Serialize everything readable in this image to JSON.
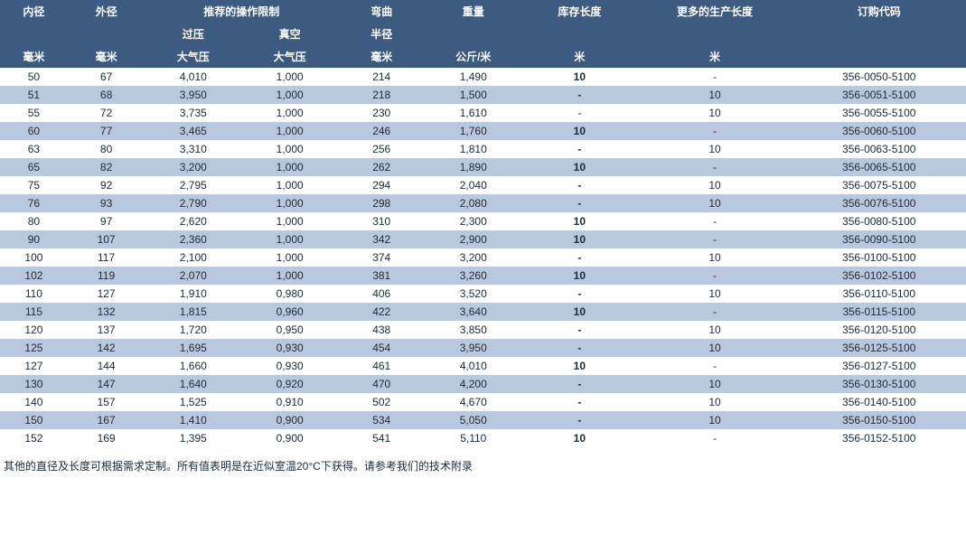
{
  "table": {
    "header": {
      "row1": {
        "inner": "内径",
        "outer": "外径",
        "oplimit": "推荐的操作限制",
        "bend": "弯曲",
        "weight": "重量",
        "stock": "库存长度",
        "prod": "更多的生产长度",
        "code": "订购代码"
      },
      "row2": {
        "press": "过压",
        "vacuum": "真空",
        "radius": "半径"
      },
      "row3": {
        "inner_u": "毫米",
        "outer_u": "毫米",
        "press_u": "大气压",
        "vacuum_u": "大气压",
        "bend_u": "毫米",
        "weight_u": "公斤/米",
        "stock_u": "米",
        "prod_u": "米"
      }
    },
    "colors": {
      "header_bg": "#3d5a80",
      "header_text": "#ffffff",
      "row_even_bg": "#ffffff",
      "row_odd_bg": "#b8c9df",
      "body_text": "#1a2b3c"
    },
    "rows": [
      {
        "id": "50",
        "od": "67",
        "press": "4,010",
        "vac": "1,000",
        "bend": "214",
        "wt": "1,490",
        "stock": "10",
        "stock_bold": true,
        "prod": "-",
        "code": "356-0050-5100"
      },
      {
        "id": "51",
        "od": "68",
        "press": "3,950",
        "vac": "1,000",
        "bend": "218",
        "wt": "1,500",
        "stock": "-",
        "stock_bold": true,
        "prod": "10",
        "code": "356-0051-5100"
      },
      {
        "id": "55",
        "od": "72",
        "press": "3,735",
        "vac": "1,000",
        "bend": "230",
        "wt": "1,610",
        "stock": "-",
        "stock_bold": false,
        "prod": "10",
        "code": "356-0055-5100"
      },
      {
        "id": "60",
        "od": "77",
        "press": "3,465",
        "vac": "1,000",
        "bend": "246",
        "wt": "1,760",
        "stock": "10",
        "stock_bold": true,
        "prod": "-",
        "code": "356-0060-5100"
      },
      {
        "id": "63",
        "od": "80",
        "press": "3,310",
        "vac": "1,000",
        "bend": "256",
        "wt": "1,810",
        "stock": "-",
        "stock_bold": true,
        "prod": "10",
        "code": "356-0063-5100"
      },
      {
        "id": "65",
        "od": "82",
        "press": "3,200",
        "vac": "1,000",
        "bend": "262",
        "wt": "1,890",
        "stock": "10",
        "stock_bold": true,
        "prod": "-",
        "code": "356-0065-5100"
      },
      {
        "id": "75",
        "od": "92",
        "press": "2,795",
        "vac": "1,000",
        "bend": "294",
        "wt": "2,040",
        "stock": "-",
        "stock_bold": true,
        "prod": "10",
        "code": "356-0075-5100"
      },
      {
        "id": "76",
        "od": "93",
        "press": "2,790",
        "vac": "1,000",
        "bend": "298",
        "wt": "2,080",
        "stock": "-",
        "stock_bold": true,
        "prod": "10",
        "code": "356-0076-5100"
      },
      {
        "id": "80",
        "od": "97",
        "press": "2,620",
        "vac": "1,000",
        "bend": "310",
        "wt": "2,300",
        "stock": "10",
        "stock_bold": true,
        "prod": "-",
        "code": "356-0080-5100"
      },
      {
        "id": "90",
        "od": "107",
        "press": "2,360",
        "vac": "1,000",
        "bend": "342",
        "wt": "2,900",
        "stock": "10",
        "stock_bold": true,
        "prod": "-",
        "code": "356-0090-5100"
      },
      {
        "id": "100",
        "od": "117",
        "press": "2,100",
        "vac": "1,000",
        "bend": "374",
        "wt": "3,200",
        "stock": "-",
        "stock_bold": true,
        "prod": "10",
        "code": "356-0100-5100"
      },
      {
        "id": "102",
        "od": "119",
        "press": "2,070",
        "vac": "1,000",
        "bend": "381",
        "wt": "3,260",
        "stock": "10",
        "stock_bold": true,
        "prod": "-",
        "code": "356-0102-5100"
      },
      {
        "id": "110",
        "od": "127",
        "press": "1,910",
        "vac": "0,980",
        "bend": "406",
        "wt": "3,520",
        "stock": "-",
        "stock_bold": true,
        "prod": "10",
        "code": "356-0110-5100"
      },
      {
        "id": "115",
        "od": "132",
        "press": "1,815",
        "vac": "0,960",
        "bend": "422",
        "wt": "3,640",
        "stock": "10",
        "stock_bold": true,
        "prod": "-",
        "code": "356-0115-5100"
      },
      {
        "id": "120",
        "od": "137",
        "press": "1,720",
        "vac": "0,950",
        "bend": "438",
        "wt": "3,850",
        "stock": "-",
        "stock_bold": true,
        "prod": "10",
        "code": "356-0120-5100"
      },
      {
        "id": "125",
        "od": "142",
        "press": "1,695",
        "vac": "0,930",
        "bend": "454",
        "wt": "3,950",
        "stock": "-",
        "stock_bold": true,
        "prod": "10",
        "code": "356-0125-5100"
      },
      {
        "id": "127",
        "od": "144",
        "press": "1,660",
        "vac": "0,930",
        "bend": "461",
        "wt": "4,010",
        "stock": "10",
        "stock_bold": true,
        "prod": "-",
        "code": "356-0127-5100"
      },
      {
        "id": "130",
        "od": "147",
        "press": "1,640",
        "vac": "0,920",
        "bend": "470",
        "wt": "4,200",
        "stock": "-",
        "stock_bold": true,
        "prod": "10",
        "code": "356-0130-5100"
      },
      {
        "id": "140",
        "od": "157",
        "press": "1,525",
        "vac": "0,910",
        "bend": "502",
        "wt": "4,670",
        "stock": "-",
        "stock_bold": true,
        "prod": "10",
        "code": "356-0140-5100"
      },
      {
        "id": "150",
        "od": "167",
        "press": "1,410",
        "vac": "0,900",
        "bend": "534",
        "wt": "5,050",
        "stock": "-",
        "stock_bold": true,
        "prod": "10",
        "code": "356-0150-5100"
      },
      {
        "id": "152",
        "od": "169",
        "press": "1,395",
        "vac": "0,900",
        "bend": "541",
        "wt": "5,110",
        "stock": "10",
        "stock_bold": true,
        "prod": "-",
        "code": "356-0152-5100"
      }
    ]
  },
  "footnote": "其他的直径及长度可根据需求定制。所有值表明是在近似室温20°C下获得。请参考我们的技术附录"
}
